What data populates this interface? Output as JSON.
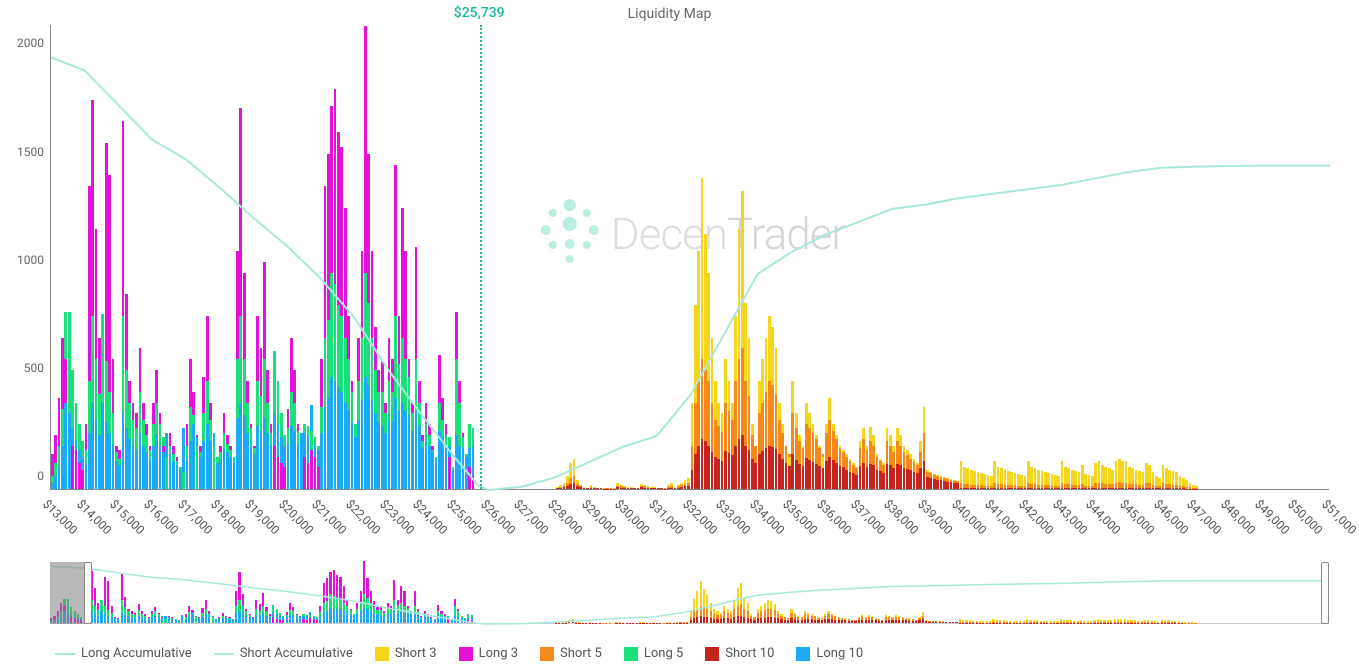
{
  "title": "Liquidity Map",
  "watermark": "DecenTrader",
  "price_marker": {
    "value": 25739,
    "label": "$25,739",
    "color": "#1abc9c"
  },
  "y_axis": {
    "min": 0,
    "max": 2150,
    "ticks": [
      0,
      500,
      1000,
      1500,
      2000
    ],
    "label_fontsize": 12
  },
  "x_axis": {
    "min": 13000,
    "max": 51000,
    "step": 1000,
    "ticks": [
      13000,
      14000,
      15000,
      16000,
      17000,
      18000,
      19000,
      20000,
      21000,
      22000,
      23000,
      24000,
      25000,
      26000,
      27000,
      28000,
      29000,
      30000,
      31000,
      32000,
      33000,
      34000,
      35000,
      36000,
      37000,
      38000,
      39000,
      40000,
      41000,
      42000,
      43000,
      44000,
      45000,
      46000,
      47000,
      48000,
      49000,
      50000,
      51000
    ],
    "label_fontsize": 12
  },
  "colors": {
    "long_accumulative": "#a8e8dc",
    "short_accumulative": "#a8e8dc",
    "short3": "#f5d61c",
    "long3": "#e312d8",
    "short5": "#f58a1c",
    "long5": "#1ae07a",
    "short10": "#c4261f",
    "long10": "#1caaf5",
    "axis": "#888888",
    "bg": "#ffffff"
  },
  "legend": [
    {
      "label": "Long Accumulative",
      "type": "line",
      "color": "#a8e8dc"
    },
    {
      "label": "Short Accumulative",
      "type": "line",
      "color": "#a8e8dc"
    },
    {
      "label": "Short 3",
      "type": "box",
      "color": "#f5d61c"
    },
    {
      "label": "Long 3",
      "type": "box",
      "color": "#e312d8"
    },
    {
      "label": "Short 5",
      "type": "box",
      "color": "#f58a1c"
    },
    {
      "label": "Long 5",
      "type": "box",
      "color": "#1ae07a"
    },
    {
      "label": "Short 10",
      "type": "box",
      "color": "#c4261f"
    },
    {
      "label": "Long 10",
      "type": "box",
      "color": "#1caaf5"
    }
  ],
  "long_accumulative": [
    [
      13000,
      2000
    ],
    [
      14000,
      1940
    ],
    [
      15000,
      1780
    ],
    [
      16000,
      1620
    ],
    [
      17000,
      1530
    ],
    [
      18000,
      1400
    ],
    [
      19000,
      1260
    ],
    [
      20000,
      1130
    ],
    [
      21000,
      980
    ],
    [
      22000,
      800
    ],
    [
      23000,
      560
    ],
    [
      24000,
      350
    ],
    [
      25000,
      150
    ],
    [
      25700,
      20
    ],
    [
      26000,
      0
    ]
  ],
  "short_accumulative": [
    [
      26000,
      0
    ],
    [
      27000,
      15
    ],
    [
      28000,
      60
    ],
    [
      29000,
      130
    ],
    [
      30000,
      200
    ],
    [
      31000,
      250
    ],
    [
      32000,
      440
    ],
    [
      33000,
      720
    ],
    [
      34000,
      1000
    ],
    [
      35000,
      1100
    ],
    [
      36000,
      1180
    ],
    [
      37000,
      1240
    ],
    [
      38000,
      1300
    ],
    [
      39000,
      1320
    ],
    [
      40000,
      1350
    ],
    [
      41000,
      1370
    ],
    [
      42000,
      1390
    ],
    [
      43000,
      1410
    ],
    [
      44000,
      1440
    ],
    [
      45000,
      1470
    ],
    [
      46000,
      1490
    ],
    [
      47000,
      1495
    ],
    [
      48000,
      1498
    ],
    [
      49000,
      1500
    ],
    [
      50000,
      1500
    ],
    [
      51000,
      1500
    ]
  ],
  "long_bars": {
    "x": [
      13000,
      13100,
      13200,
      13300,
      13400,
      13500,
      13600,
      13700,
      13800,
      13900,
      14000,
      14100,
      14200,
      14300,
      14400,
      14500,
      14600,
      14700,
      14800,
      14900,
      15000,
      15100,
      15200,
      15300,
      15400,
      15500,
      15600,
      15700,
      15800,
      15900,
      16000,
      16100,
      16200,
      16300,
      16400,
      16500,
      16600,
      16700,
      16800,
      16900,
      17000,
      17100,
      17200,
      17300,
      17400,
      17500,
      17600,
      17700,
      17800,
      17900,
      18000,
      18100,
      18200,
      18300,
      18400,
      18500,
      18600,
      18700,
      18800,
      18900,
      19000,
      19100,
      19200,
      19300,
      19400,
      19500,
      19600,
      19700,
      19800,
      19900,
      20000,
      20100,
      20200,
      20300,
      20400,
      20500,
      20600,
      20700,
      20800,
      20900,
      21000,
      21100,
      21200,
      21300,
      21400,
      21500,
      21600,
      21700,
      21800,
      21900,
      22000,
      22100,
      22200,
      22300,
      22400,
      22500,
      22600,
      22700,
      22800,
      22900,
      23000,
      23100,
      23200,
      23300,
      23400,
      23500,
      23600,
      23700,
      23800,
      23900,
      24000,
      24100,
      24200,
      24300,
      24400,
      24500,
      24600,
      24700,
      24800,
      24900,
      25000,
      25100,
      25200,
      25300,
      25400,
      25500
    ],
    "long3": [
      160,
      250,
      420,
      700,
      600,
      350,
      200,
      180,
      120,
      90,
      300,
      1400,
      1800,
      1200,
      700,
      400,
      1600,
      1450,
      600,
      200,
      180,
      1700,
      900,
      500,
      400,
      350,
      650,
      400,
      300,
      200,
      400,
      550,
      350,
      200,
      150,
      260,
      200,
      150,
      100,
      80,
      300,
      600,
      450,
      250,
      200,
      520,
      800,
      400,
      200,
      150,
      200,
      350,
      250,
      200,
      150,
      1100,
      1760,
      1000,
      500,
      300,
      200,
      800,
      650,
      1050,
      550,
      300,
      200,
      150,
      120,
      100,
      370,
      700,
      550,
      300,
      260,
      150,
      120,
      180,
      150,
      100,
      600,
      1400,
      1550,
      1770,
      1850,
      1650,
      1580,
      1300,
      800,
      500,
      300,
      700,
      1100,
      2140,
      1550,
      1100,
      750,
      550,
      585,
      400,
      700,
      600,
      1500,
      800,
      1300,
      1100,
      600,
      400,
      1120,
      500,
      250,
      400,
      300,
      200,
      150,
      620,
      420,
      300,
      150,
      100,
      820,
      500,
      260,
      160,
      100,
      60
    ],
    "long5": [
      60,
      120,
      200,
      370,
      820,
      820,
      550,
      400,
      300,
      220,
      180,
      500,
      800,
      600,
      440,
      810,
      590,
      450,
      350,
      170,
      140,
      800,
      550,
      400,
      320,
      280,
      450,
      320,
      250,
      180,
      300,
      400,
      300,
      240,
      150,
      200,
      160,
      130,
      100,
      80,
      200,
      380,
      340,
      200,
      170,
      350,
      500,
      320,
      200,
      150,
      170,
      260,
      210,
      180,
      150,
      600,
      800,
      600,
      400,
      280,
      190,
      500,
      430,
      600,
      400,
      260,
      640,
      500,
      350,
      250,
      280,
      450,
      400,
      270,
      260,
      300,
      290,
      270,
      240,
      200,
      380,
      700,
      780,
      1000,
      950,
      850,
      800,
      700,
      600,
      450,
      300,
      500,
      700,
      1000,
      860,
      700,
      550,
      450,
      450,
      350,
      500,
      450,
      800,
      580,
      700,
      600,
      520,
      350,
      600,
      400,
      220,
      300,
      250,
      180,
      150,
      400,
      320,
      250,
      240,
      100,
      600,
      400,
      240,
      160,
      300,
      280
    ],
    "long10": [
      30,
      60,
      100,
      200,
      400,
      350,
      280,
      220,
      180,
      150,
      120,
      260,
      400,
      320,
      250,
      400,
      310,
      260,
      210,
      130,
      110,
      350,
      280,
      230,
      200,
      180,
      260,
      200,
      170,
      140,
      200,
      250,
      200,
      170,
      260,
      160,
      130,
      110,
      90,
      280,
      140,
      220,
      300,
      240,
      150,
      220,
      300,
      220,
      260,
      120,
      140,
      190,
      170,
      150,
      130,
      330,
      400,
      340,
      260,
      200,
      160,
      290,
      270,
      330,
      260,
      200,
      350,
      300,
      240,
      200,
      210,
      290,
      270,
      210,
      260,
      260,
      250,
      390,
      210,
      180,
      260,
      380,
      420,
      520,
      500,
      470,
      450,
      400,
      360,
      310,
      240,
      320,
      410,
      520,
      480,
      410,
      350,
      310,
      290,
      260,
      320,
      310,
      420,
      360,
      400,
      360,
      340,
      270,
      360,
      290,
      190,
      230,
      200,
      170,
      140,
      270,
      240,
      200,
      200,
      90,
      250,
      200,
      190,
      150,
      190,
      200
    ]
  },
  "short_bars": {
    "x": [
      27800,
      27900,
      28000,
      28100,
      28200,
      28300,
      28400,
      28500,
      28600,
      28700,
      28800,
      28900,
      29000,
      29100,
      29200,
      29300,
      29400,
      29500,
      29600,
      29700,
      29800,
      29900,
      30000,
      30100,
      30200,
      30300,
      30400,
      30500,
      30600,
      30700,
      30800,
      30900,
      31000,
      31100,
      31200,
      31300,
      31400,
      31500,
      31600,
      31700,
      31800,
      31900,
      32000,
      32100,
      32200,
      32300,
      32400,
      32500,
      32600,
      32700,
      32800,
      32900,
      33000,
      33100,
      33200,
      33300,
      33400,
      33500,
      33600,
      33700,
      33800,
      33900,
      34000,
      34100,
      34200,
      34300,
      34400,
      34500,
      34600,
      34700,
      34800,
      34900,
      35000,
      35100,
      35200,
      35300,
      35400,
      35500,
      35600,
      35700,
      35800,
      35900,
      36000,
      36100,
      36200,
      36300,
      36400,
      36500,
      36600,
      36700,
      36800,
      36900,
      37000,
      37100,
      37200,
      37300,
      37400,
      37500,
      37600,
      37700,
      37800,
      37900,
      38000,
      38100,
      38200,
      38300,
      38400,
      38500,
      38600,
      38700,
      38800,
      38900,
      39000,
      39100,
      39200,
      39300,
      39400,
      39500,
      39600,
      39700,
      39800,
      39900,
      40000,
      40100,
      40200,
      40300,
      40400,
      40500,
      40600,
      40700,
      40800,
      40900,
      41000,
      41100,
      41200,
      41300,
      41400,
      41500,
      41600,
      41700,
      41800,
      41900,
      42000,
      42100,
      42200,
      42300,
      42400,
      42500,
      42600,
      42700,
      42800,
      42900,
      43000,
      43100,
      43200,
      43300,
      43400,
      43500,
      43600,
      43700,
      43800,
      43900,
      44000,
      44100,
      44200,
      44300,
      44400,
      44500,
      44600,
      44700,
      44800,
      44900,
      45000,
      45100,
      45200,
      45300,
      45400,
      45500,
      45600,
      45700,
      45800,
      45900,
      46000,
      46100,
      46200,
      46300,
      46400,
      46500,
      46600,
      46700,
      46800,
      46900,
      47000
    ],
    "short3": [
      0,
      0,
      10,
      20,
      30,
      60,
      120,
      140,
      40,
      20,
      10,
      5,
      20,
      8,
      5,
      5,
      4,
      4,
      4,
      3,
      30,
      20,
      15,
      10,
      8,
      6,
      5,
      25,
      20,
      15,
      10,
      8,
      6,
      5,
      4,
      18,
      27,
      10,
      20,
      30,
      40,
      50,
      400,
      850,
      1100,
      1440,
      1180,
      1000,
      700,
      500,
      400,
      350,
      600,
      500,
      400,
      800,
      1200,
      1380,
      860,
      700,
      300,
      200,
      500,
      600,
      700,
      800,
      750,
      650,
      400,
      300,
      200,
      150,
      500,
      350,
      250,
      200,
      400,
      350,
      300,
      250,
      200,
      150,
      300,
      420,
      300,
      250,
      200,
      180,
      160,
      140,
      120,
      100,
      220,
      280,
      200,
      285,
      250,
      160,
      140,
      120,
      280,
      250,
      200,
      280,
      250,
      200,
      180,
      160,
      140,
      120,
      220,
      380,
      90,
      80,
      70,
      65,
      60,
      55,
      50,
      45,
      40,
      38,
      130,
      100,
      95,
      90,
      85,
      80,
      75,
      70,
      65,
      60,
      130,
      100,
      95,
      90,
      85,
      80,
      75,
      70,
      65,
      60,
      130,
      100,
      95,
      90,
      85,
      80,
      75,
      70,
      65,
      60,
      130,
      100,
      95,
      90,
      85,
      80,
      110,
      70,
      65,
      60,
      120,
      130,
      110,
      100,
      95,
      90,
      130,
      140,
      130,
      130,
      100,
      95,
      90,
      85,
      80,
      120,
      110,
      80,
      60,
      50,
      110,
      95,
      90,
      85,
      80,
      60,
      50,
      40,
      30,
      20,
      15
    ],
    "short5": [
      0,
      0,
      5,
      10,
      15,
      30,
      50,
      60,
      25,
      12,
      7,
      4,
      10,
      5,
      4,
      4,
      3,
      3,
      3,
      2,
      15,
      12,
      10,
      7,
      5,
      4,
      4,
      15,
      12,
      10,
      7,
      5,
      4,
      4,
      3,
      10,
      15,
      7,
      12,
      18,
      25,
      30,
      200,
      400,
      500,
      600,
      550,
      500,
      400,
      320,
      290,
      265,
      400,
      360,
      320,
      500,
      600,
      650,
      500,
      430,
      250,
      200,
      350,
      400,
      450,
      500,
      480,
      440,
      320,
      260,
      200,
      160,
      350,
      280,
      220,
      190,
      300,
      280,
      260,
      230,
      190,
      160,
      260,
      320,
      270,
      230,
      190,
      170,
      150,
      130,
      110,
      95,
      190,
      230,
      180,
      220,
      200,
      150,
      130,
      110,
      220,
      200,
      170,
      220,
      200,
      170,
      155,
      140,
      125,
      110,
      170,
      260,
      80,
      72,
      65,
      60,
      56,
      51,
      47,
      42,
      38,
      36,
      30,
      25,
      22,
      20,
      19,
      18,
      17,
      16,
      15,
      14,
      30,
      25,
      22,
      20,
      19,
      18,
      17,
      16,
      15,
      14,
      30,
      25,
      22,
      20,
      19,
      18,
      17,
      16,
      15,
      14,
      30,
      25,
      22,
      20,
      19,
      18,
      25,
      16,
      15,
      14,
      28,
      30,
      26,
      24,
      22,
      21,
      30,
      32,
      30,
      30,
      24,
      22,
      21,
      20,
      19,
      28,
      26,
      19,
      15,
      13,
      26,
      22,
      21,
      20,
      19,
      15,
      13,
      10,
      8,
      6,
      5
    ],
    "short10": [
      0,
      0,
      3,
      5,
      8,
      15,
      25,
      30,
      15,
      8,
      5,
      3,
      5,
      3,
      3,
      3,
      2,
      2,
      2,
      2,
      8,
      6,
      5,
      4,
      3,
      3,
      3,
      8,
      6,
      5,
      4,
      3,
      3,
      3,
      2,
      5,
      7,
      4,
      6,
      9,
      12,
      15,
      90,
      160,
      200,
      230,
      220,
      200,
      170,
      150,
      140,
      130,
      175,
      165,
      155,
      200,
      230,
      250,
      200,
      180,
      140,
      120,
      160,
      175,
      190,
      200,
      195,
      185,
      160,
      140,
      120,
      105,
      160,
      135,
      115,
      105,
      145,
      135,
      125,
      115,
      105,
      95,
      130,
      150,
      135,
      120,
      105,
      100,
      90,
      80,
      72,
      65,
      105,
      120,
      100,
      115,
      110,
      90,
      82,
      75,
      115,
      110,
      98,
      115,
      110,
      98,
      92,
      86,
      80,
      72,
      98,
      130,
      55,
      50,
      46,
      42,
      40,
      37,
      34,
      31,
      28,
      27,
      6,
      5,
      5,
      4,
      4,
      4,
      4,
      3,
      3,
      3,
      6,
      5,
      5,
      4,
      4,
      4,
      4,
      3,
      3,
      3,
      6,
      5,
      5,
      4,
      4,
      4,
      4,
      3,
      3,
      3,
      6,
      5,
      5,
      4,
      4,
      4,
      5,
      3,
      3,
      3,
      6,
      6,
      5,
      5,
      5,
      5,
      6,
      7,
      6,
      6,
      5,
      5,
      5,
      4,
      4,
      6,
      6,
      4,
      3,
      3,
      6,
      5,
      5,
      4,
      4,
      3,
      3,
      2,
      2,
      2,
      1
    ]
  },
  "range_selector": {
    "left_frac": 0.0,
    "right_frac": 0.03
  }
}
